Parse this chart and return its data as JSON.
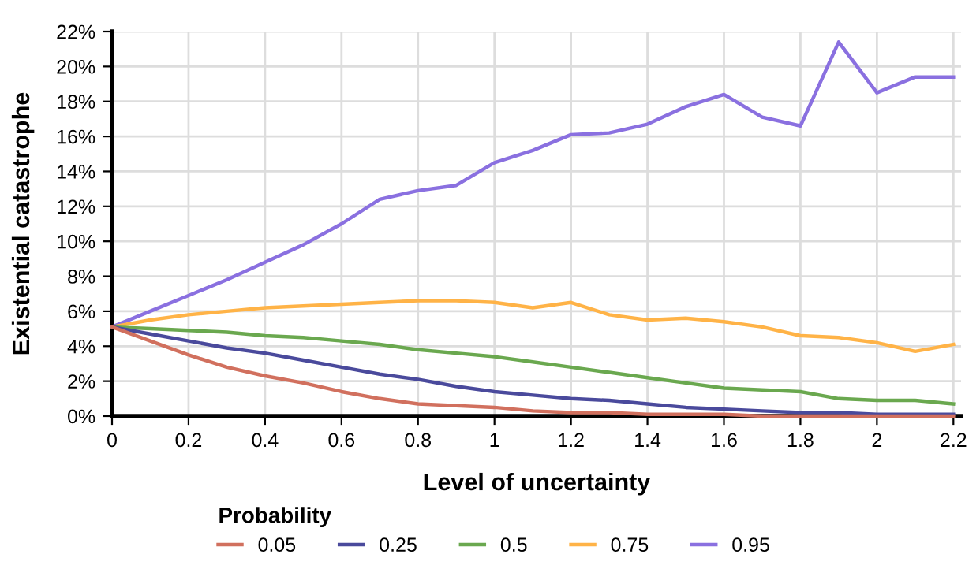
{
  "chart_data": {
    "type": "line",
    "xlabel": "Level of uncertainty",
    "ylabel": "Existential catastrophe",
    "legend_title": "Probability",
    "legend": "bottom",
    "grid": true,
    "marker": "none",
    "line_style": "solid",
    "x": [
      0,
      0.1,
      0.2,
      0.3,
      0.4,
      0.5,
      0.6,
      0.7,
      0.8,
      0.9,
      1,
      1.1,
      1.2,
      1.3,
      1.4,
      1.5,
      1.6,
      1.7,
      1.8,
      1.9,
      2,
      2.1,
      2.2
    ],
    "xlim": [
      0,
      2.22
    ],
    "xticks": [
      0,
      0.2,
      0.4,
      0.6,
      0.8,
      1,
      1.2,
      1.4,
      1.6,
      1.8,
      2,
      2.2
    ],
    "ylim": [
      0,
      22
    ],
    "yticks": [
      {
        "value": 0,
        "label": "0%"
      },
      {
        "value": 2,
        "label": "2%"
      },
      {
        "value": 4,
        "label": "4%"
      },
      {
        "value": 6,
        "label": "6%"
      },
      {
        "value": 8,
        "label": "8%"
      },
      {
        "value": 10,
        "label": "10%"
      },
      {
        "value": 12,
        "label": "12%"
      },
      {
        "value": 14,
        "label": "14%"
      },
      {
        "value": 16,
        "label": "16%"
      },
      {
        "value": 18,
        "label": "18%"
      },
      {
        "value": 20,
        "label": "20%"
      },
      {
        "value": 22,
        "label": "22%"
      }
    ],
    "series": [
      {
        "name": "0.05",
        "color": "#d1705e",
        "values": [
          5.1,
          4.3,
          3.5,
          2.8,
          2.3,
          1.9,
          1.4,
          1.0,
          0.7,
          0.6,
          0.5,
          0.3,
          0.2,
          0.2,
          0.1,
          0.1,
          0.1,
          0.0,
          0.0,
          0.0,
          0.0,
          0.0,
          0.0
        ]
      },
      {
        "name": "0.25",
        "color": "#4a4a9c",
        "values": [
          5.1,
          4.7,
          4.3,
          3.9,
          3.6,
          3.2,
          2.8,
          2.4,
          2.1,
          1.7,
          1.4,
          1.2,
          1.0,
          0.9,
          0.7,
          0.5,
          0.4,
          0.3,
          0.2,
          0.2,
          0.1,
          0.1,
          0.1
        ]
      },
      {
        "name": "0.5",
        "color": "#6aa84f",
        "values": [
          5.1,
          5.0,
          4.9,
          4.8,
          4.6,
          4.5,
          4.3,
          4.1,
          3.8,
          3.6,
          3.4,
          3.1,
          2.8,
          2.5,
          2.2,
          1.9,
          1.6,
          1.5,
          1.4,
          1.0,
          0.9,
          0.9,
          0.7
        ]
      },
      {
        "name": "0.75",
        "color": "#ffb347",
        "values": [
          5.1,
          5.5,
          5.8,
          6.0,
          6.2,
          6.3,
          6.4,
          6.5,
          6.6,
          6.6,
          6.5,
          6.2,
          6.5,
          5.8,
          5.5,
          5.6,
          5.4,
          5.1,
          4.6,
          4.5,
          4.2,
          3.7,
          4.1
        ]
      },
      {
        "name": "0.95",
        "color": "#8a70e0",
        "values": [
          5.1,
          6.0,
          6.9,
          7.8,
          8.8,
          9.8,
          11.0,
          12.4,
          12.9,
          13.2,
          14.5,
          15.2,
          16.1,
          16.2,
          16.7,
          17.7,
          18.4,
          17.1,
          16.6,
          21.4,
          18.5,
          19.4,
          19.4
        ]
      }
    ]
  }
}
